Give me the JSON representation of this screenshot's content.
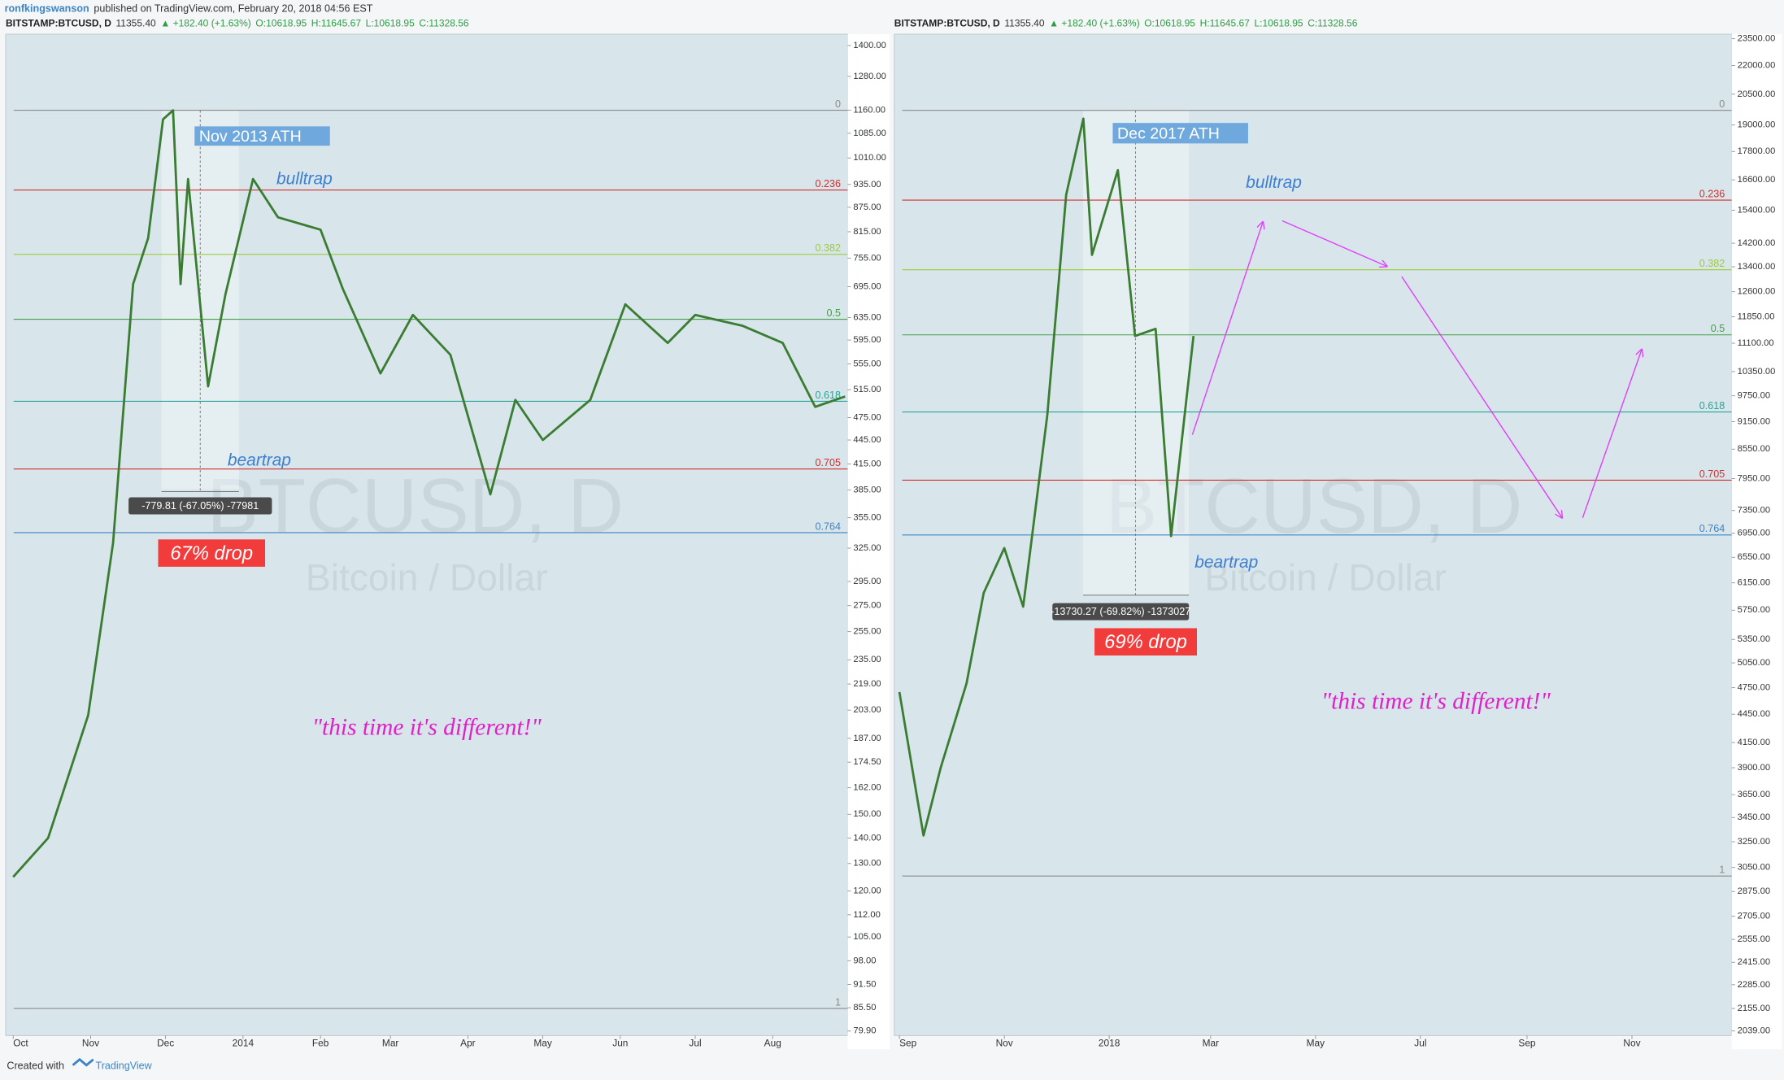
{
  "published": {
    "user": "ronfkingswanson",
    "text": "published on TradingView.com, February 20, 2018 04:56 EST"
  },
  "footer": {
    "created": "Created with",
    "brand": "TradingView"
  },
  "chart_data": [
    {
      "type": "line",
      "symbol": "BITSTAMP:BTCUSD, D",
      "last": "11355.40",
      "change": "▲ +182.40 (+1.63%)",
      "open": "O:10618.95",
      "high": "H:11645.67",
      "low": "L:10618.95",
      "close": "C:11328.56",
      "watermark": "BTCUSD, D",
      "watermark_sub": "Bitcoin / Dollar",
      "log_y": true,
      "xlim": [
        -3,
        334
      ],
      "ylim": [
        78.85,
        1447
      ],
      "xticks": [
        {
          "value": 0,
          "label": "Oct"
        },
        {
          "value": 31,
          "label": "Nov"
        },
        {
          "value": 61,
          "label": "Dec"
        },
        {
          "value": 92,
          "label": "2014"
        },
        {
          "value": 123,
          "label": "Feb"
        },
        {
          "value": 151,
          "label": "Mar"
        },
        {
          "value": 182,
          "label": "Apr"
        },
        {
          "value": 212,
          "label": "May"
        },
        {
          "value": 243,
          "label": "Jun"
        },
        {
          "value": 273,
          "label": "Jul"
        },
        {
          "value": 304,
          "label": "Aug"
        }
      ],
      "yticks": [
        {
          "value": 1400,
          "label": "1400.00"
        },
        {
          "value": 1280,
          "label": "1280.00"
        },
        {
          "value": 1160,
          "label": "1160.00"
        },
        {
          "value": 1085,
          "label": "1085.00"
        },
        {
          "value": 1010,
          "label": "1010.00"
        },
        {
          "value": 935,
          "label": "935.00"
        },
        {
          "value": 875,
          "label": "875.00"
        },
        {
          "value": 815,
          "label": "815.00"
        },
        {
          "value": 755,
          "label": "755.00"
        },
        {
          "value": 695,
          "label": "695.00"
        },
        {
          "value": 635,
          "label": "635.00"
        },
        {
          "value": 595,
          "label": "595.00"
        },
        {
          "value": 555,
          "label": "555.00"
        },
        {
          "value": 515,
          "label": "515.00"
        },
        {
          "value": 475,
          "label": "475.00"
        },
        {
          "value": 445,
          "label": "445.00"
        },
        {
          "value": 415,
          "label": "415.00"
        },
        {
          "value": 385,
          "label": "385.00"
        },
        {
          "value": 355,
          "label": "355.00"
        },
        {
          "value": 325,
          "label": "325.00"
        },
        {
          "value": 295,
          "label": "295.00"
        },
        {
          "value": 275,
          "label": "275.00"
        },
        {
          "value": 255,
          "label": "255.00"
        },
        {
          "value": 235,
          "label": "235.00"
        },
        {
          "value": 219,
          "label": "219.00"
        },
        {
          "value": 203,
          "label": "203.00"
        },
        {
          "value": 187,
          "label": "187.00"
        },
        {
          "value": 174.5,
          "label": "174.50"
        },
        {
          "value": 162,
          "label": "162.00"
        },
        {
          "value": 150,
          "label": "150.00"
        },
        {
          "value": 140,
          "label": "140.00"
        },
        {
          "value": 130,
          "label": "130.00"
        },
        {
          "value": 120,
          "label": "120.00"
        },
        {
          "value": 112,
          "label": "112.00"
        },
        {
          "value": 105,
          "label": "105.00"
        },
        {
          "value": 98,
          "label": "98.00"
        },
        {
          "value": 91.5,
          "label": "91.50"
        },
        {
          "value": 85.5,
          "label": "85.50"
        },
        {
          "value": 79.9,
          "label": "79.90"
        }
      ],
      "x": [
        0,
        14,
        30,
        40,
        48,
        54,
        60,
        64,
        67,
        70,
        78,
        85,
        96,
        106,
        123,
        132,
        147,
        160,
        175,
        191,
        201,
        212,
        231,
        245,
        262,
        273,
        292,
        308,
        321,
        333
      ],
      "values": [
        125,
        140,
        200,
        330,
        700,
        800,
        1130,
        1160,
        700,
        950,
        520,
        680,
        950,
        850,
        820,
        690,
        540,
        640,
        570,
        380,
        500,
        445,
        500,
        660,
        590,
        640,
        620,
        590,
        490,
        505
      ],
      "color": "#3a7d32",
      "fib": [
        {
          "label": "0",
          "value": 1160,
          "color": "#8a8a8a"
        },
        {
          "label": "0.236",
          "value": 920,
          "color": "#d32f2f"
        },
        {
          "label": "0.382",
          "value": 763,
          "color": "#9ccc3c"
        },
        {
          "label": "0.5",
          "value": 632,
          "color": "#43a047"
        },
        {
          "label": "0.618",
          "value": 498,
          "color": "#26a69a"
        },
        {
          "label": "0.705",
          "value": 409,
          "color": "#d32f2f"
        },
        {
          "label": "0.764",
          "value": 340,
          "color": "#3d85c6"
        },
        {
          "label": "1",
          "value": 85.3,
          "color": "#8a8a8a"
        }
      ],
      "annotations": {
        "ath": "Nov 2013 ATH",
        "bulltrap": "bulltrap",
        "beartrap": "beartrap",
        "measure": "-779.81 (-67.05%) -77981",
        "drop": "67% drop",
        "quote": "\"this time it's different!\""
      }
    },
    {
      "type": "line",
      "symbol": "BITSTAMP:BTCUSD, D",
      "last": "11355.40",
      "change": "▲ +182.40 (+1.63%)",
      "open": "O:10618.95",
      "high": "H:11645.67",
      "low": "L:10618.95",
      "close": "C:11328.56",
      "watermark": "BTCUSD, D",
      "watermark_sub": "Bitcoin / Dollar",
      "log_y": true,
      "xlim": [
        -3,
        484
      ],
      "ylim": [
        2016,
        23765
      ],
      "xticks": [
        {
          "value": 0,
          "label": "Sep"
        },
        {
          "value": 61,
          "label": "Nov"
        },
        {
          "value": 122,
          "label": "2018"
        },
        {
          "value": 181,
          "label": "Mar"
        },
        {
          "value": 242,
          "label": "May"
        },
        {
          "value": 303,
          "label": "Jul"
        },
        {
          "value": 365,
          "label": "Sep"
        },
        {
          "value": 426,
          "label": "Nov"
        }
      ],
      "yticks": [
        {
          "value": 23500,
          "label": "23500.00"
        },
        {
          "value": 22000,
          "label": "22000.00"
        },
        {
          "value": 20500,
          "label": "20500.00"
        },
        {
          "value": 19000,
          "label": "19000.00"
        },
        {
          "value": 17800,
          "label": "17800.00"
        },
        {
          "value": 16600,
          "label": "16600.00"
        },
        {
          "value": 15400,
          "label": "15400.00"
        },
        {
          "value": 14200,
          "label": "14200.00"
        },
        {
          "value": 13400,
          "label": "13400.00"
        },
        {
          "value": 12600,
          "label": "12600.00"
        },
        {
          "value": 11850,
          "label": "11850.00"
        },
        {
          "value": 11100,
          "label": "11100.00"
        },
        {
          "value": 10350,
          "label": "10350.00"
        },
        {
          "value": 9750,
          "label": "9750.00"
        },
        {
          "value": 9150,
          "label": "9150.00"
        },
        {
          "value": 8550,
          "label": "8550.00"
        },
        {
          "value": 7950,
          "label": "7950.00"
        },
        {
          "value": 7350,
          "label": "7350.00"
        },
        {
          "value": 6950,
          "label": "6950.00"
        },
        {
          "value": 6550,
          "label": "6550.00"
        },
        {
          "value": 6150,
          "label": "6150.00"
        },
        {
          "value": 5750,
          "label": "5750.00"
        },
        {
          "value": 5350,
          "label": "5350.00"
        },
        {
          "value": 5050,
          "label": "5050.00"
        },
        {
          "value": 4750,
          "label": "4750.00"
        },
        {
          "value": 4450,
          "label": "4450.00"
        },
        {
          "value": 4150,
          "label": "4150.00"
        },
        {
          "value": 3900,
          "label": "3900.00"
        },
        {
          "value": 3650,
          "label": "3650.00"
        },
        {
          "value": 3450,
          "label": "3450.00"
        },
        {
          "value": 3250,
          "label": "3250.00"
        },
        {
          "value": 3050,
          "label": "3050.00"
        },
        {
          "value": 2875,
          "label": "2875.00"
        },
        {
          "value": 2705,
          "label": "2705.00"
        },
        {
          "value": 2555,
          "label": "2555.00"
        },
        {
          "value": 2415,
          "label": "2415.00"
        },
        {
          "value": 2285,
          "label": "2285.00"
        },
        {
          "value": 2155,
          "label": "2155.00"
        },
        {
          "value": 2039,
          "label": "2039.00"
        }
      ],
      "x": [
        0,
        14,
        24,
        39,
        49,
        61,
        72,
        86,
        97,
        107,
        112,
        127,
        137,
        149,
        158,
        171
      ],
      "values": [
        4700,
        3300,
        3900,
        4800,
        6000,
        6700,
        5800,
        9300,
        16000,
        19300,
        13800,
        17000,
        11300,
        11500,
        6900,
        11300
      ],
      "color": "#3a7d32",
      "fib": [
        {
          "label": "0",
          "value": 19700,
          "color": "#8a8a8a"
        },
        {
          "label": "0.236",
          "value": 15790,
          "color": "#d32f2f"
        },
        {
          "label": "0.382",
          "value": 13300,
          "color": "#9ccc3c"
        },
        {
          "label": "0.5",
          "value": 11330,
          "color": "#43a047"
        },
        {
          "label": "0.618",
          "value": 9370,
          "color": "#26a69a"
        },
        {
          "label": "0.705",
          "value": 7920,
          "color": "#d32f2f"
        },
        {
          "label": "0.764",
          "value": 6920,
          "color": "#3d85c6"
        },
        {
          "label": "1",
          "value": 2987,
          "color": "#8a8a8a"
        }
      ],
      "annotations": {
        "ath": "Dec 2017 ATH",
        "bulltrap": "bulltrap",
        "beartrap": "beartrap",
        "measure": "-13730.27 (-69.82%) -1373027",
        "drop": "69% drop",
        "quote": "\"this time it's different!\""
      }
    }
  ]
}
